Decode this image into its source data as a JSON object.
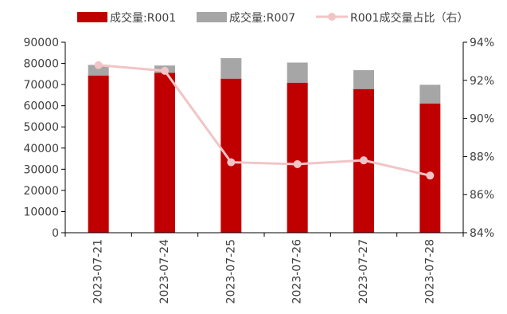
{
  "chart_data": {
    "type": "bar",
    "stacked": true,
    "categories": [
      "2023-07-21",
      "2023-07-24",
      "2023-07-25",
      "2023-07-26",
      "2023-07-27",
      "2023-07-28"
    ],
    "series": [
      {
        "name": "成交量:R001",
        "type": "bar",
        "axis": "left",
        "color": "#C00000",
        "values": [
          74300,
          75600,
          72800,
          70900,
          67900,
          61000
        ]
      },
      {
        "name": "成交量:R007",
        "type": "bar",
        "axis": "left",
        "color": "#A6A6A6",
        "values": [
          5000,
          3400,
          9700,
          9500,
          8900,
          8900
        ]
      },
      {
        "name": "R001成交量占比（右）",
        "type": "line",
        "axis": "right",
        "color": "#F2C4C6",
        "values": [
          92.8,
          92.5,
          87.7,
          87.6,
          87.8,
          87.0
        ]
      }
    ],
    "y_left": {
      "min": 0,
      "max": 90000,
      "step": 10000,
      "tick_labels": [
        "0",
        "10000",
        "20000",
        "30000",
        "40000",
        "50000",
        "60000",
        "70000",
        "80000",
        "90000"
      ]
    },
    "y_right": {
      "min": 84,
      "max": 94,
      "step": 2,
      "tick_labels": [
        "84%",
        "86%",
        "88%",
        "90%",
        "92%",
        "94%"
      ]
    },
    "legend_position": "top",
    "grid": false
  }
}
